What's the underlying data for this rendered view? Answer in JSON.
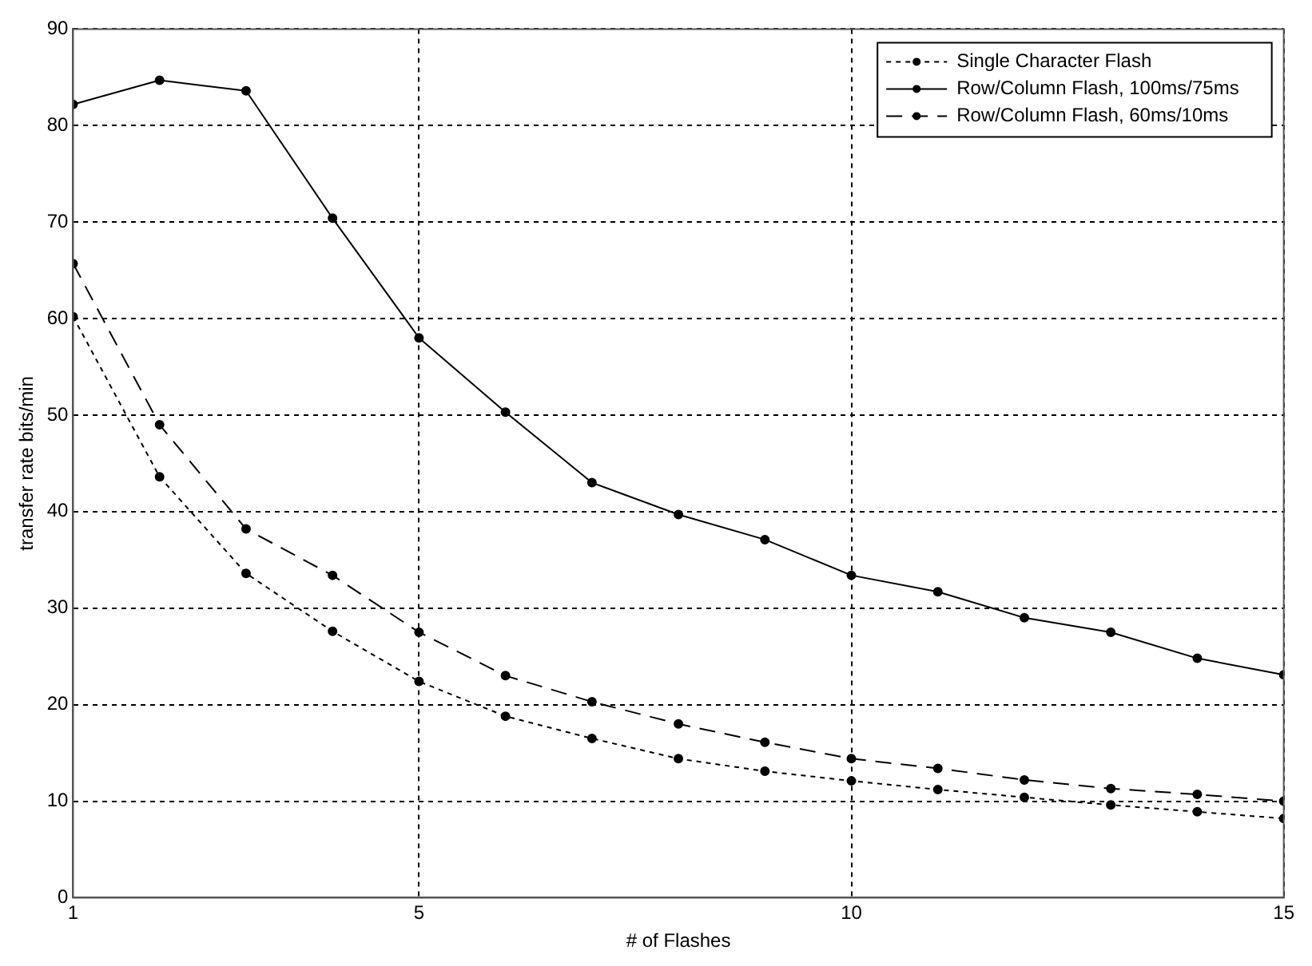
{
  "chart_data": {
    "type": "line",
    "xlabel": "# of Flashes",
    "ylabel": "transfer rate bits/min",
    "x": [
      1,
      2,
      3,
      4,
      5,
      6,
      7,
      8,
      9,
      10,
      11,
      12,
      13,
      14,
      15
    ],
    "series": [
      {
        "name": "Single Character Flash",
        "color": "#000000",
        "line_style": "dotted",
        "values": [
          60.2,
          43.6,
          33.6,
          27.6,
          22.4,
          18.8,
          16.5,
          14.4,
          13.1,
          12.1,
          11.2,
          10.4,
          9.6,
          8.9,
          8.2
        ]
      },
      {
        "name": "Row/Column Flash, 100ms/75ms",
        "color": "#000000",
        "line_style": "solid",
        "values": [
          82.2,
          84.7,
          83.6,
          70.4,
          58.0,
          50.3,
          43.0,
          39.7,
          37.1,
          33.4,
          31.7,
          29.0,
          27.5,
          24.8,
          23.1
        ]
      },
      {
        "name": "Row/Column Flash, 60ms/10ms",
        "color": "#000000",
        "line_style": "dashed",
        "values": [
          65.7,
          49.0,
          38.2,
          33.4,
          27.5,
          23.0,
          20.3,
          18.0,
          16.1,
          14.4,
          13.4,
          12.2,
          11.3,
          10.7,
          10.0
        ]
      }
    ],
    "xlim": [
      1,
      15
    ],
    "xticks": [
      1,
      5,
      10,
      15
    ],
    "ylim": [
      0,
      90
    ],
    "yticks": [
      0,
      10,
      20,
      30,
      40,
      50,
      60,
      70,
      80,
      90
    ],
    "grid": true,
    "legend": "top right",
    "marker": "circle"
  }
}
